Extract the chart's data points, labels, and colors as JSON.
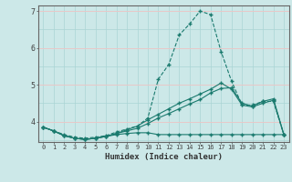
{
  "xlabel": "Humidex (Indice chaleur)",
  "ylabel": "",
  "background_color": "#cce8e8",
  "line_color": "#1a7a6e",
  "grid_color_minor": "#aad4d4",
  "grid_color_major": "#e8c8c8",
  "xlim": [
    -0.5,
    23.5
  ],
  "ylim": [
    3.45,
    7.15
  ],
  "xticks": [
    0,
    1,
    2,
    3,
    4,
    5,
    6,
    7,
    8,
    9,
    10,
    11,
    12,
    13,
    14,
    15,
    16,
    17,
    18,
    19,
    20,
    21,
    22,
    23
  ],
  "yticks": [
    4,
    5,
    6,
    7
  ],
  "series1_x": [
    0,
    1,
    2,
    3,
    4,
    5,
    6,
    7,
    8,
    9,
    10,
    11,
    12,
    13,
    14,
    15,
    16,
    17,
    18,
    19,
    20,
    21,
    22,
    23
  ],
  "series1_y": [
    3.85,
    3.75,
    3.65,
    3.58,
    3.55,
    3.58,
    3.62,
    3.72,
    3.8,
    3.88,
    4.1,
    5.15,
    5.55,
    6.35,
    6.65,
    7.0,
    6.9,
    5.9,
    5.1,
    4.45,
    4.45,
    4.55,
    4.55,
    3.65
  ],
  "series2_x": [
    0,
    1,
    2,
    3,
    4,
    5,
    6,
    7,
    8,
    9,
    10,
    11,
    12,
    13,
    14,
    15,
    16,
    17,
    18,
    19,
    20,
    21,
    22,
    23
  ],
  "series2_y": [
    3.85,
    3.75,
    3.62,
    3.55,
    3.52,
    3.55,
    3.6,
    3.68,
    3.75,
    3.82,
    3.95,
    4.1,
    4.22,
    4.35,
    4.48,
    4.6,
    4.78,
    4.9,
    4.92,
    4.5,
    4.42,
    4.55,
    4.62,
    3.65
  ],
  "series3_x": [
    0,
    1,
    2,
    3,
    4,
    5,
    6,
    7,
    8,
    9,
    10,
    11,
    12,
    13,
    14,
    15,
    16,
    17,
    18,
    19,
    20,
    21,
    22,
    23
  ],
  "series3_y": [
    3.85,
    3.75,
    3.62,
    3.55,
    3.52,
    3.55,
    3.6,
    3.65,
    3.68,
    3.7,
    3.7,
    3.65,
    3.65,
    3.65,
    3.65,
    3.65,
    3.65,
    3.65,
    3.65,
    3.65,
    3.65,
    3.65,
    3.65,
    3.65
  ],
  "series4_x": [
    0,
    1,
    2,
    3,
    4,
    5,
    6,
    7,
    8,
    9,
    10,
    11,
    12,
    13,
    14,
    15,
    16,
    17,
    18,
    19,
    20,
    21,
    22,
    23
  ],
  "series4_y": [
    3.85,
    3.75,
    3.62,
    3.55,
    3.52,
    3.55,
    3.6,
    3.68,
    3.78,
    3.88,
    4.05,
    4.2,
    4.35,
    4.5,
    4.62,
    4.75,
    4.88,
    5.05,
    4.88,
    4.45,
    4.4,
    4.5,
    4.58,
    3.65
  ]
}
